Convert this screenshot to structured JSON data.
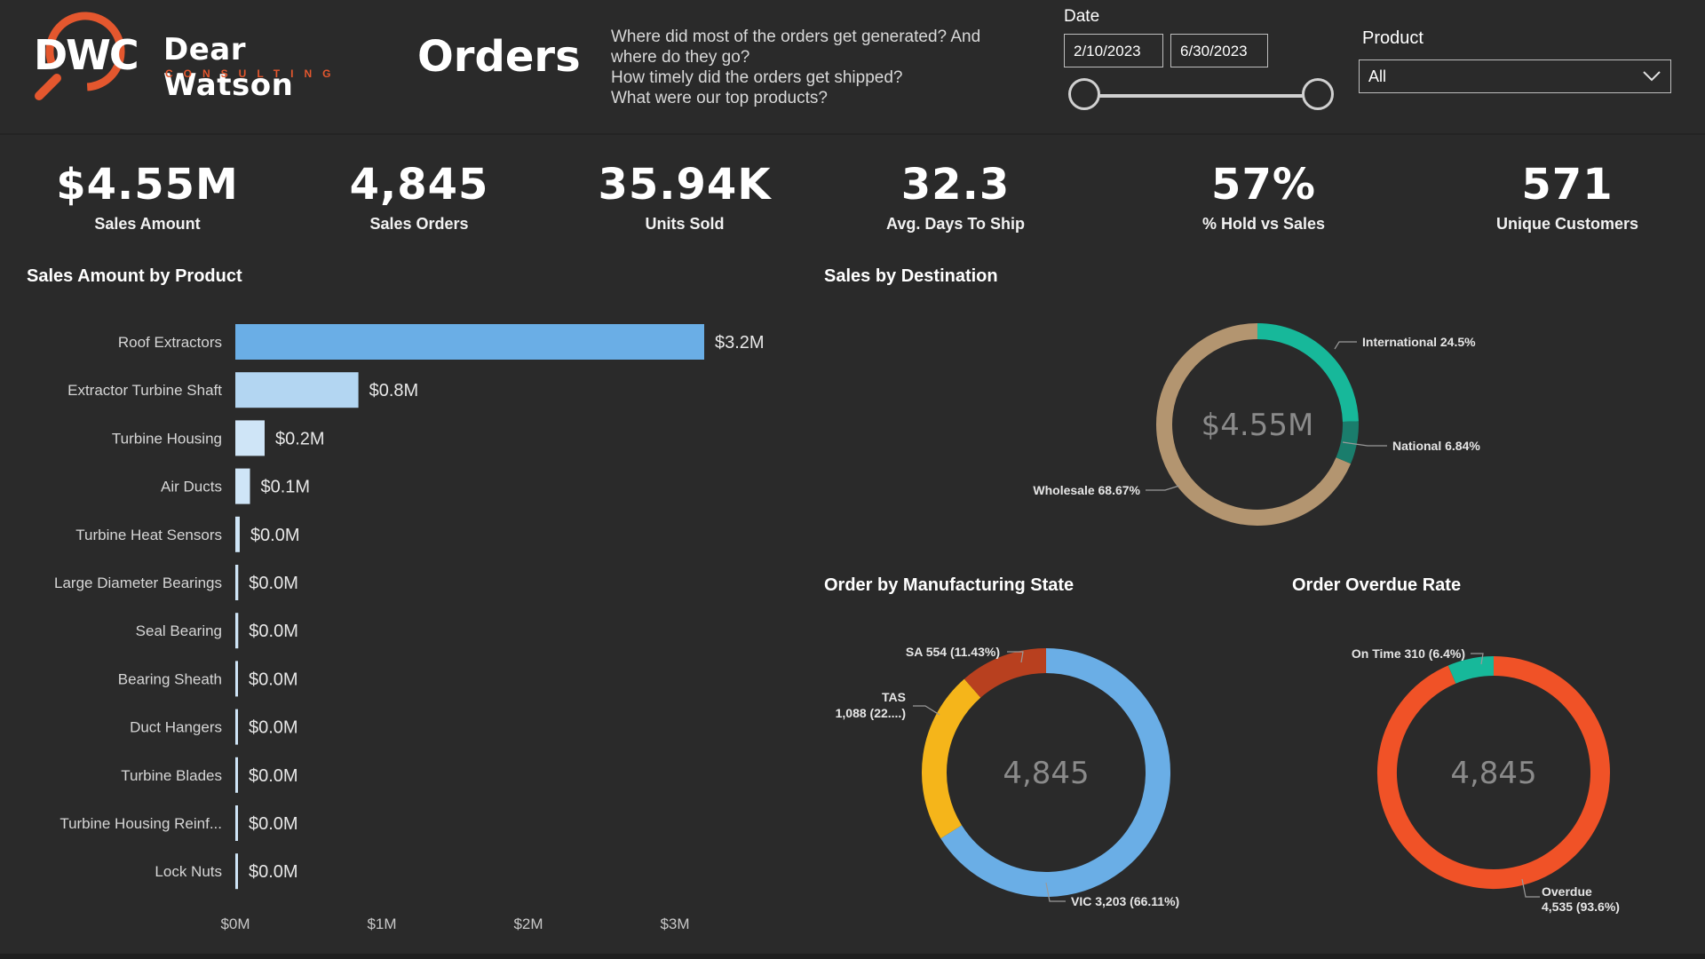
{
  "brand": {
    "mark": "DWC",
    "name": "Dear Watson",
    "subtitle": "CONSULTING",
    "accent": "#e4572e"
  },
  "page": {
    "title": "Orders",
    "questions": [
      "Where did most of the orders get generated? And",
      "where do they go?",
      "How timely did the orders get shipped?",
      "What were our top products?"
    ]
  },
  "filters": {
    "date_label": "Date",
    "date_start": "2/10/2023",
    "date_end": "6/30/2023",
    "product_label": "Product",
    "product_value": "All"
  },
  "kpis": [
    {
      "value": "$4.55M",
      "label": "Sales Amount"
    },
    {
      "value": "4,845",
      "label": "Sales Orders"
    },
    {
      "value": "35.94K",
      "label": "Units Sold"
    },
    {
      "value": "32.3",
      "label": "Avg. Days To Ship"
    },
    {
      "value": "57%",
      "label": "% Hold vs Sales"
    },
    {
      "value": "571",
      "label": "Unique Customers"
    }
  ],
  "sections": {
    "sales_by_product": "Sales Amount by Product",
    "sales_by_destination": "Sales by Destination",
    "order_by_state": "Order by Manufacturing State",
    "order_overdue": "Order Overdue Rate"
  },
  "chart_data": [
    {
      "type": "bar",
      "orientation": "horizontal",
      "title": "Sales Amount by Product",
      "categories": [
        "Roof Extractors",
        "Extractor Turbine Shaft",
        "Turbine Housing",
        "Air Ducts",
        "Turbine Heat Sensors",
        "Large Diameter Bearings",
        "Seal Bearing",
        "Bearing Sheath",
        "Duct Hangers",
        "Turbine Blades",
        "Turbine Housing Reinf...",
        "Lock Nuts"
      ],
      "values": [
        3.2,
        0.84,
        0.2,
        0.1,
        0.03,
        0.02,
        0.02,
        0.015,
        0.012,
        0.01,
        0.008,
        0.006
      ],
      "data_labels": [
        "$3.2M",
        "$0.8M",
        "$0.2M",
        "$0.1M",
        "$0.0M",
        "$0.0M",
        "$0.0M",
        "$0.0M",
        "$0.0M",
        "$0.0M",
        "$0.0M",
        "$0.0M"
      ],
      "xticks": [
        "$0M",
        "$1M",
        "$2M",
        "$3M"
      ],
      "xlim": [
        0,
        3.2
      ],
      "colors": {
        "top": "#6aaee6",
        "second": "#b3d6f2",
        "rest": "#cfe5f7"
      }
    },
    {
      "type": "pie",
      "variant": "donut",
      "title": "Sales by Destination",
      "center": "$4.55M",
      "slices": [
        {
          "label": "International 24.5%",
          "value": 24.5,
          "color": "#17b89a"
        },
        {
          "label": "National 6.84%",
          "value": 6.84,
          "color": "#1a7d6c"
        },
        {
          "label": "Wholesale 68.67%",
          "value": 68.67,
          "color": "#b39570"
        }
      ]
    },
    {
      "type": "pie",
      "variant": "donut",
      "title": "Order by Manufacturing State",
      "center": "4,845",
      "slices": [
        {
          "label": "VIC 3,203 (66.11%)",
          "value": 66.11,
          "color": "#6aaee6"
        },
        {
          "label_line1": "TAS",
          "label_line2": "1,088 (22....)",
          "value": 22.46,
          "color": "#f5b51a"
        },
        {
          "label": "SA 554 (11.43%)",
          "value": 11.43,
          "color": "#b8401f"
        }
      ]
    },
    {
      "type": "pie",
      "variant": "donut",
      "title": "Order Overdue Rate",
      "center": "4,845",
      "slices": [
        {
          "label_line1": "Overdue",
          "label_line2": "4,535 (93.6%)",
          "value": 93.6,
          "color": "#f05227"
        },
        {
          "label": "On Time 310 (6.4%)",
          "value": 6.4,
          "color": "#17b89a"
        }
      ]
    }
  ]
}
